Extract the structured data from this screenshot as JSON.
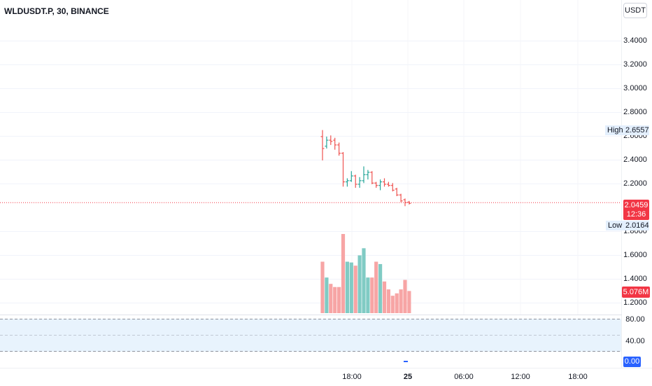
{
  "header": {
    "symbol": "WLDUSDT.P, 30, BINANCE",
    "currency": "USDT"
  },
  "price_scale": {
    "labels": [
      "3.4000",
      "3.2000",
      "3.0000",
      "2.8000",
      "2.6000",
      "2.4000",
      "2.2000",
      "1.8000",
      "1.6000",
      "1.4000",
      "1.2000"
    ],
    "values": [
      3.4,
      3.2,
      3.0,
      2.8,
      2.6,
      2.4,
      2.2,
      1.8,
      1.6,
      1.4,
      1.2
    ],
    "high_label": "High",
    "high_value": "2.6557",
    "low_label": "Low",
    "low_value": "2.0164",
    "last_price": "2.0459",
    "countdown": "12:36",
    "volume_value": "5.076M"
  },
  "rsi_scale": {
    "labels": [
      "80.00",
      "40.00"
    ],
    "value": "0.00"
  },
  "time_axis": {
    "labels": [
      {
        "text": "18:00",
        "bold": false,
        "slot": 0
      },
      {
        "text": "25",
        "bold": true,
        "slot": 1
      },
      {
        "text": "06:00",
        "bold": false,
        "slot": 2
      },
      {
        "text": "12:00",
        "bold": false,
        "slot": 3
      },
      {
        "text": "18:00",
        "bold": false,
        "slot": 4
      }
    ]
  },
  "colors": {
    "up": "#26a69a",
    "down": "#ef5350",
    "vol_up": "#80cbc4",
    "vol_down": "#f7a5a5",
    "last_price": "#f23645",
    "rsi": "#2962ff"
  },
  "chart_data": {
    "type": "ohlc",
    "bars": [
      {
        "o": 2.6,
        "h": 2.655,
        "l": 2.4,
        "c": 2.5,
        "v": 0.65
      },
      {
        "o": 2.52,
        "h": 2.6,
        "l": 2.5,
        "c": 2.57,
        "v": 0.45
      },
      {
        "o": 2.57,
        "h": 2.61,
        "l": 2.53,
        "c": 2.56,
        "v": 0.37
      },
      {
        "o": 2.57,
        "h": 2.59,
        "l": 2.49,
        "c": 2.53,
        "v": 0.33
      },
      {
        "o": 2.53,
        "h": 2.55,
        "l": 2.44,
        "c": 2.46,
        "v": 0.33
      },
      {
        "o": 2.46,
        "h": 2.47,
        "l": 2.18,
        "c": 2.22,
        "v": 1.0
      },
      {
        "o": 2.22,
        "h": 2.25,
        "l": 2.18,
        "c": 2.23,
        "v": 0.65
      },
      {
        "o": 2.23,
        "h": 2.31,
        "l": 2.22,
        "c": 2.27,
        "v": 0.64
      },
      {
        "o": 2.27,
        "h": 2.28,
        "l": 2.17,
        "c": 2.2,
        "v": 0.6
      },
      {
        "o": 2.2,
        "h": 2.26,
        "l": 2.17,
        "c": 2.23,
        "v": 0.73
      },
      {
        "o": 2.23,
        "h": 2.35,
        "l": 2.21,
        "c": 2.28,
        "v": 0.82
      },
      {
        "o": 2.28,
        "h": 2.32,
        "l": 2.24,
        "c": 2.3,
        "v": 0.45
      },
      {
        "o": 2.3,
        "h": 2.31,
        "l": 2.2,
        "c": 2.21,
        "v": 0.45
      },
      {
        "o": 2.21,
        "h": 2.22,
        "l": 2.17,
        "c": 2.19,
        "v": 0.65
      },
      {
        "o": 2.19,
        "h": 2.24,
        "l": 2.15,
        "c": 2.22,
        "v": 0.62
      },
      {
        "o": 2.22,
        "h": 2.25,
        "l": 2.18,
        "c": 2.2,
        "v": 0.4
      },
      {
        "o": 2.2,
        "h": 2.22,
        "l": 2.18,
        "c": 2.19,
        "v": 0.3
      },
      {
        "o": 2.19,
        "h": 2.21,
        "l": 2.14,
        "c": 2.15,
        "v": 0.22
      },
      {
        "o": 2.16,
        "h": 2.17,
        "l": 2.1,
        "c": 2.11,
        "v": 0.25
      },
      {
        "o": 2.11,
        "h": 2.12,
        "l": 2.05,
        "c": 2.06,
        "v": 0.3
      },
      {
        "o": 2.07,
        "h": 2.08,
        "l": 2.016,
        "c": 2.0459,
        "v": 0.42
      },
      {
        "o": 2.05,
        "h": 2.06,
        "l": 2.03,
        "c": 2.04,
        "v": 0.28
      }
    ],
    "last_price": 2.0459,
    "ylim": [
      1.2,
      3.5
    ],
    "rsi_bands": [
      80,
      40
    ]
  }
}
